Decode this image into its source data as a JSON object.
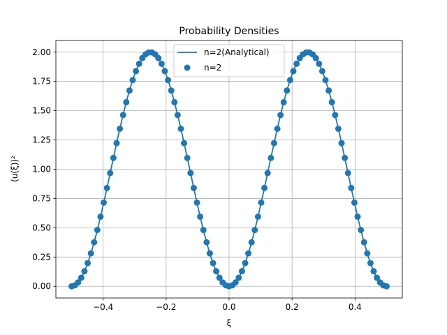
{
  "chart_data": {
    "type": "line",
    "title": "Probability Densities",
    "xlabel": "ξ",
    "ylabel": "(u(ξ))²",
    "xlim": [
      -0.55,
      0.55
    ],
    "ylim": [
      -0.1,
      2.1
    ],
    "x_ticks": [
      "−0.4",
      "−0.2",
      "0.0",
      "0.2",
      "0.4"
    ],
    "y_ticks": [
      "0.00",
      "0.25",
      "0.50",
      "0.75",
      "1.00",
      "1.25",
      "1.50",
      "1.75",
      "2.00"
    ],
    "grid": true,
    "legend_position": "top-center",
    "series": [
      {
        "name": "n=2(Analytical)",
        "style": "line",
        "color": "#1f77b4",
        "function": "2*sin^2(2*pi*xi)",
        "x_range": [
          -0.5,
          0.5
        ]
      },
      {
        "name": "n=2",
        "style": "scatter",
        "color": "#1f77b4",
        "x": [
          -0.5,
          -0.4898,
          -0.4796,
          -0.4694,
          -0.4592,
          -0.449,
          -0.4388,
          -0.4286,
          -0.4184,
          -0.4082,
          -0.398,
          -0.3878,
          -0.3776,
          -0.3673,
          -0.3571,
          -0.3469,
          -0.3367,
          -0.3265,
          -0.3163,
          -0.3061,
          -0.2959,
          -0.2857,
          -0.2755,
          -0.2653,
          -0.2551,
          -0.2449,
          -0.2347,
          -0.2245,
          -0.2143,
          -0.2041,
          -0.1939,
          -0.1837,
          -0.1735,
          -0.1633,
          -0.1531,
          -0.1429,
          -0.1327,
          -0.1224,
          -0.1122,
          -0.102,
          -0.0918,
          -0.0816,
          -0.0714,
          -0.0612,
          -0.051,
          -0.0408,
          -0.0306,
          -0.0204,
          -0.0102,
          0.0,
          0.0102,
          0.0204,
          0.0306,
          0.0408,
          0.051,
          0.0612,
          0.0714,
          0.0816,
          0.0918,
          0.102,
          0.1122,
          0.1224,
          0.1327,
          0.1429,
          0.1531,
          0.1633,
          0.1735,
          0.1837,
          0.1939,
          0.2041,
          0.2143,
          0.2245,
          0.2347,
          0.2449,
          0.2551,
          0.2653,
          0.2755,
          0.2857,
          0.2959,
          0.3061,
          0.3163,
          0.3265,
          0.3367,
          0.3469,
          0.3571,
          0.3673,
          0.3776,
          0.3878,
          0.398,
          0.4082,
          0.4184,
          0.4286,
          0.4388,
          0.449,
          0.4592,
          0.4694,
          0.4796,
          0.4898,
          0.5
        ],
        "y_function": "2*sin^2(2*pi*xi)"
      }
    ]
  }
}
